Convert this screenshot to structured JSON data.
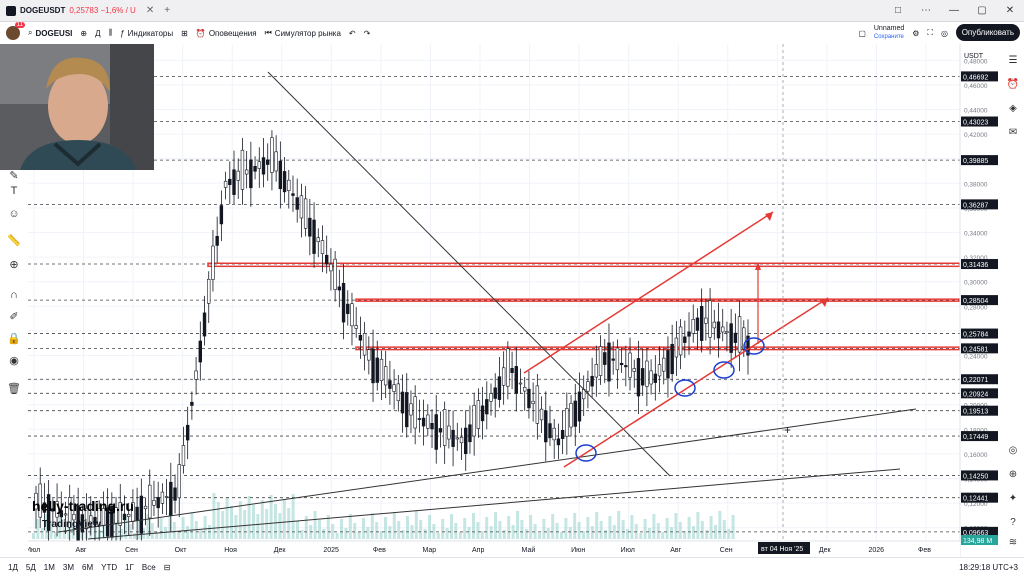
{
  "window": {
    "tab_symbol": "DOGEUSDT",
    "tab_price": "0,25783 −1,6% / U",
    "window_controls": [
      "□",
      "⋯",
      "—",
      "▢",
      "✕"
    ]
  },
  "toolbar": {
    "symbol": "DOGEUSI",
    "interval": "Д",
    "indicators": "Индикаторы",
    "alerts": "Оповещения",
    "replay": "Симулятор рынка",
    "layout_name": "Unnamed",
    "layout_status": "Сохраните",
    "publish": "Опубликовать",
    "notif_count": "11"
  },
  "price_axis": {
    "currency": "USDT",
    "ticks": [
      "0,48000",
      "0,46000",
      "0,44000",
      "0,42000",
      "0,40000",
      "0,38000",
      "0,36000",
      "0,34000",
      "0,32000",
      "0,30000",
      "0,28000",
      "0,26000",
      "0,24000",
      "0,22000",
      "0,20000",
      "0,18000",
      "0,16000",
      "0,14000",
      "0,12000",
      "0,10000"
    ],
    "labels": [
      {
        "text": "0,46692",
        "v": 0.46692
      },
      {
        "text": "0,43023",
        "v": 0.43023
      },
      {
        "text": "0,39885",
        "v": 0.39885
      },
      {
        "text": "0,36287",
        "v": 0.36287
      },
      {
        "text": "0,31436",
        "v": 0.31436
      },
      {
        "text": "0,28504",
        "v": 0.28504
      },
      {
        "text": "0,25784",
        "v": 0.25784
      },
      {
        "text": "0,24581",
        "v": 0.24581
      },
      {
        "text": "0,22071",
        "v": 0.22071
      },
      {
        "text": "0,20924",
        "v": 0.20924
      },
      {
        "text": "0,19513",
        "v": 0.19513
      },
      {
        "text": "0,17449",
        "v": 0.17449
      },
      {
        "text": "0,14250",
        "v": 0.1425
      },
      {
        "text": "0,12441",
        "v": 0.12441
      },
      {
        "text": "0,09663",
        "v": 0.09663
      }
    ],
    "current_price_label": "134,98 М"
  },
  "time_axis": {
    "labels": [
      "Июл",
      "Авг",
      "Сен",
      "Окт",
      "Ноя",
      "Дек",
      "2025",
      "Фев",
      "Мар",
      "Апр",
      "Май",
      "Июн",
      "Июл",
      "Авг",
      "Сен",
      "Окт",
      "Дек",
      "2026",
      "Фев"
    ],
    "crosshair_label": "вт 04 Ноя '25"
  },
  "bottom": {
    "ranges": [
      "1Д",
      "5Д",
      "1М",
      "3М",
      "6М",
      "YTD",
      "1Г",
      "Все"
    ],
    "clock": "18:29:18 UTC+3"
  },
  "watermark": "helly-trading.ru",
  "tv_logo": "TradingView",
  "colors": {
    "zone": "#e53935",
    "candle": "#131722",
    "trend": "#333333",
    "circle": "#1a3fd1",
    "volume": "#9fd6cf"
  },
  "chart_data": {
    "type": "line",
    "symbol": "DOGEUSDT",
    "x": [
      "2024-07",
      "2024-08",
      "2024-09",
      "2024-10",
      "2024-11",
      "2024-12",
      "2025-01",
      "2025-02",
      "2025-03",
      "2025-04",
      "2025-05",
      "2025-06",
      "2025-07",
      "2025-08",
      "2025-09",
      "2025-10"
    ],
    "series": [
      {
        "values": [
          0.12,
          0.105,
          0.11,
          0.13,
          0.38,
          0.4,
          0.33,
          0.24,
          0.19,
          0.17,
          0.23,
          0.17,
          0.24,
          0.22,
          0.27,
          0.25
        ]
      }
    ],
    "ylim": [
      0.09,
      0.49
    ],
    "grid": true
  }
}
